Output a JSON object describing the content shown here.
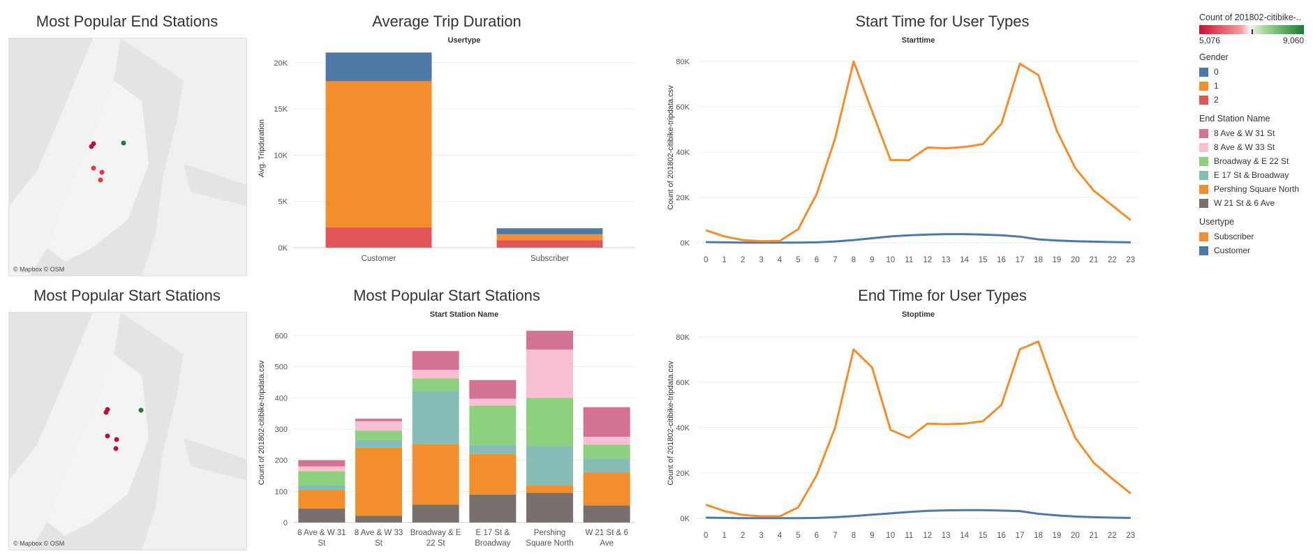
{
  "titles": {
    "end_map": "Most Popular End Stations",
    "start_map": "Most Popular Start Stations",
    "avg_trip": "Average Trip Duration",
    "start_bar": "Most Popular Start Stations",
    "start_time": "Start Time for User Types",
    "end_time": "End Time for User Types"
  },
  "maps": {
    "attribution": "© Mapbox © OSM",
    "colors": {
      "high": "#b5123c",
      "mid": "#e0394b",
      "low": "#1f7a3a"
    }
  },
  "legend": {
    "count_title": "Count of 201802-citibike-..",
    "count_min": "5,076",
    "count_max": "9,060",
    "gender_title": "Gender",
    "gender": [
      {
        "label": "0",
        "color": "#4e79a7"
      },
      {
        "label": "1",
        "color": "#f28e2b"
      },
      {
        "label": "2",
        "color": "#e15759"
      }
    ],
    "station_title": "End Station Name",
    "stations": [
      {
        "label": "8 Ave & W 31 St",
        "color": "#d37295"
      },
      {
        "label": "8 Ave & W 33 St",
        "color": "#fabfd2"
      },
      {
        "label": "Broadway & E 22 St",
        "color": "#8cd17d"
      },
      {
        "label": "E 17 St & Broadway",
        "color": "#86bcb6"
      },
      {
        "label": "Pershing Square North",
        "color": "#f28e2b"
      },
      {
        "label": "W 21 St & 6 Ave",
        "color": "#79706e"
      }
    ],
    "usertype_title": "Usertype",
    "usertypes": [
      {
        "label": "Subscriber",
        "color": "#f28e2b"
      },
      {
        "label": "Customer",
        "color": "#4e79a7"
      }
    ]
  },
  "chart_data": [
    {
      "type": "bar",
      "title": "Average Trip Duration",
      "header": "Usertype",
      "ylabel": "Avg. Tripduration",
      "categories": [
        "Customer",
        "Subscriber"
      ],
      "stacked": true,
      "series": [
        {
          "name": "2",
          "color": "#e15759",
          "values": [
            2200,
            800
          ]
        },
        {
          "name": "1",
          "color": "#f28e2b",
          "values": [
            15800,
            650
          ]
        },
        {
          "name": "0",
          "color": "#4e79a7",
          "values": [
            3100,
            650
          ]
        }
      ],
      "yticks": [
        0,
        5000,
        10000,
        15000,
        20000
      ],
      "ytick_labels": [
        "0K",
        "5K",
        "10K",
        "15K",
        "20K"
      ],
      "ylim": [
        0,
        21500
      ]
    },
    {
      "type": "bar",
      "title": "Most Popular Start Stations",
      "header": "Start Station Name",
      "ylabel": "Count of 201802-citibike-tripdata.csv",
      "categories": [
        "8 Ave & W 31 St",
        "8 Ave & W 33 St",
        "Broadway & E 22 St",
        "E 17 St & Broadway",
        "Pershing Square North",
        "W 21 St & 6 Ave"
      ],
      "category_lines": [
        [
          "8 Ave & W 31",
          "St"
        ],
        [
          "8 Ave & W 33",
          "St"
        ],
        [
          "Broadway & E",
          "22 St"
        ],
        [
          "E 17 St &",
          "Broadway"
        ],
        [
          "Pershing",
          "Square North"
        ],
        [
          "W 21 St & 6",
          "Ave"
        ]
      ],
      "stacked": true,
      "series": [
        {
          "name": "W 21 St & 6 Ave",
          "color": "#79706e",
          "values": [
            45,
            22,
            57,
            90,
            95,
            55
          ]
        },
        {
          "name": "Pershing Square North",
          "color": "#f28e2b",
          "values": [
            60,
            218,
            195,
            130,
            25,
            105
          ]
        },
        {
          "name": "E 17 St & Broadway",
          "color": "#86bcb6",
          "values": [
            15,
            25,
            170,
            30,
            125,
            45
          ]
        },
        {
          "name": "Broadway & E 22 St",
          "color": "#8cd17d",
          "values": [
            45,
            30,
            40,
            125,
            155,
            45
          ]
        },
        {
          "name": "8 Ave & W 33 St",
          "color": "#fabfd2",
          "values": [
            15,
            30,
            28,
            22,
            155,
            25
          ]
        },
        {
          "name": "8 Ave & W 31 St",
          "color": "#d37295",
          "values": [
            20,
            8,
            60,
            60,
            60,
            95
          ]
        }
      ],
      "yticks": [
        0,
        100,
        200,
        300,
        400,
        500,
        600
      ],
      "ylim": [
        0,
        640
      ]
    },
    {
      "type": "line",
      "title": "Start Time for User Types",
      "header": "Starttime",
      "ylabel": "Count of 201802-citibike-tripdata.csv",
      "x": [
        0,
        1,
        2,
        3,
        4,
        5,
        6,
        7,
        8,
        9,
        10,
        11,
        12,
        13,
        14,
        15,
        16,
        17,
        18,
        19,
        20,
        21,
        22,
        23
      ],
      "series": [
        {
          "name": "Subscriber",
          "color": "#f28e2b",
          "values": [
            5500,
            2800,
            1200,
            700,
            800,
            6000,
            21500,
            46000,
            80000,
            58000,
            36500,
            36400,
            42000,
            41700,
            42200,
            43500,
            52500,
            79000,
            74000,
            49500,
            33000,
            23000,
            16500,
            10000
          ]
        },
        {
          "name": "Customer",
          "color": "#4e79a7",
          "values": [
            300,
            200,
            100,
            50,
            50,
            100,
            200,
            600,
            1200,
            2000,
            2800,
            3300,
            3600,
            3800,
            3800,
            3600,
            3300,
            2700,
            1500,
            1000,
            700,
            500,
            300,
            200
          ]
        }
      ],
      "yticks": [
        0,
        20000,
        40000,
        60000,
        80000
      ],
      "ytick_labels": [
        "0K",
        "20K",
        "40K",
        "60K",
        "80K"
      ],
      "ylim": [
        0,
        84000
      ]
    },
    {
      "type": "line",
      "title": "End Time for User Types",
      "header": "Stoptime",
      "ylabel": "Count of 201802-citibike-tripdata.csv",
      "x": [
        0,
        1,
        2,
        3,
        4,
        5,
        6,
        7,
        8,
        9,
        10,
        11,
        12,
        13,
        14,
        15,
        16,
        17,
        18,
        19,
        20,
        21,
        22,
        23
      ],
      "series": [
        {
          "name": "Subscriber",
          "color": "#f28e2b",
          "values": [
            6000,
            3200,
            1500,
            900,
            900,
            4800,
            19000,
            40000,
            74500,
            66500,
            39000,
            35500,
            41800,
            41500,
            41800,
            42800,
            50000,
            74500,
            78000,
            55000,
            35500,
            24500,
            17500,
            11000
          ]
        },
        {
          "name": "Customer",
          "color": "#4e79a7",
          "values": [
            300,
            200,
            100,
            50,
            50,
            100,
            200,
            500,
            1000,
            1600,
            2200,
            2800,
            3300,
            3500,
            3600,
            3600,
            3400,
            3200,
            2000,
            1300,
            800,
            500,
            300,
            200
          ]
        }
      ],
      "yticks": [
        0,
        20000,
        40000,
        60000,
        80000
      ],
      "ytick_labels": [
        "0K",
        "20K",
        "40K",
        "60K",
        "80K"
      ],
      "ylim": [
        0,
        84000
      ]
    }
  ]
}
